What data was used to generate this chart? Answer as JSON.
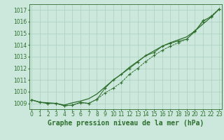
{
  "title": "Graphe pression niveau de la mer (hPa)",
  "background_color": "#cce8dc",
  "grid_color": "#aacfbf",
  "line_color": "#2d6e2d",
  "x_values": [
    0,
    1,
    2,
    3,
    4,
    5,
    6,
    7,
    8,
    9,
    10,
    11,
    12,
    13,
    14,
    15,
    16,
    17,
    18,
    19,
    20,
    21,
    22,
    23
  ],
  "series_smooth": [
    1009.3,
    1009.1,
    1009.05,
    1009.0,
    1008.85,
    1009.05,
    1009.2,
    1009.4,
    1009.8,
    1010.4,
    1011.0,
    1011.5,
    1012.1,
    1012.6,
    1013.1,
    1013.5,
    1013.9,
    1014.2,
    1014.45,
    1014.7,
    1015.2,
    1015.8,
    1016.4,
    1017.1
  ],
  "series_markers1": [
    1009.3,
    1009.1,
    1009.0,
    1009.0,
    1008.8,
    1008.85,
    1009.1,
    1009.0,
    1009.35,
    1010.3,
    1011.0,
    1011.5,
    1012.0,
    1012.55,
    1013.1,
    1013.35,
    1013.9,
    1014.15,
    1014.35,
    1014.5,
    1015.15,
    1016.1,
    1016.4,
    1017.1
  ],
  "series_markers2": [
    1009.3,
    1009.1,
    1009.0,
    1009.0,
    1008.8,
    1008.85,
    1009.05,
    1009.0,
    1009.35,
    1009.9,
    1010.3,
    1010.8,
    1011.5,
    1012.0,
    1012.6,
    1013.1,
    1013.55,
    1013.9,
    1014.2,
    1014.5,
    1015.2,
    1016.0,
    1016.5,
    1017.1
  ],
  "ylim_min": 1008.5,
  "ylim_max": 1017.5,
  "yticks": [
    1009,
    1010,
    1011,
    1012,
    1013,
    1014,
    1015,
    1016,
    1017
  ],
  "title_fontsize": 7,
  "tick_fontsize": 5.5
}
